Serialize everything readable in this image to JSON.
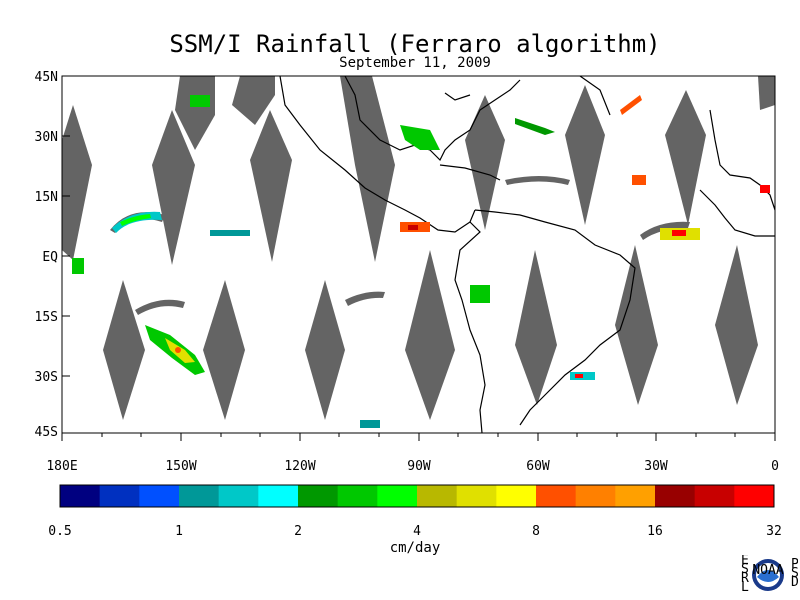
{
  "title": "SSM/I Rainfall (Ferraro algorithm)",
  "date": "September 11, 2009",
  "lat_labels": [
    "45N",
    "30N",
    "15N",
    "EQ",
    "15S",
    "30S",
    "45S"
  ],
  "lon_labels": [
    "180E",
    "150W",
    "120W",
    "90W",
    "60W",
    "30W",
    "0"
  ],
  "colorbar": {
    "colors": [
      "#000080",
      "#0030c0",
      "#0050ff",
      "#009898",
      "#00c8c8",
      "#00ffff",
      "#009800",
      "#00c800",
      "#00ff00",
      "#b8b800",
      "#e0e000",
      "#ffff00",
      "#ff5000",
      "#ff8000",
      "#ffa000",
      "#980000",
      "#c80000",
      "#ff0000"
    ],
    "tick_labels": [
      "0.5",
      "1",
      "2",
      "4",
      "8",
      "16",
      "32"
    ]
  },
  "units": "cm/day",
  "logo": {
    "left_letters": "ESRL",
    "right_letters": "PSD",
    "center": "NOAA"
  },
  "swath_color": "#646464"
}
